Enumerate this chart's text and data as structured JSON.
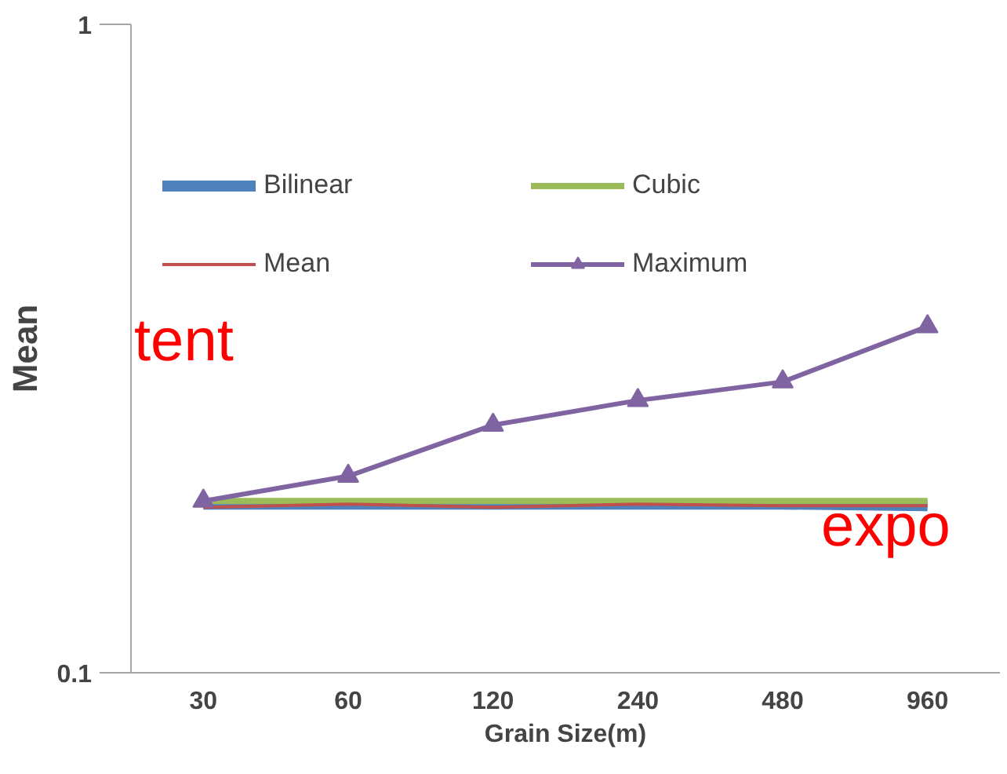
{
  "chart_data": {
    "type": "line",
    "xlabel": "Grain Size(m)",
    "ylabel": "Mean",
    "categories": [
      "30",
      "60",
      "120",
      "240",
      "480",
      "960"
    ],
    "series": [
      {
        "name": "Bilinear",
        "color": "#4f81bd",
        "values": [
          0.182,
          0.182,
          0.182,
          0.182,
          0.182,
          0.181
        ],
        "marker": "none"
      },
      {
        "name": "Cubic",
        "color": "#9bbb59",
        "values": [
          0.184,
          0.184,
          0.184,
          0.184,
          0.184,
          0.184
        ],
        "marker": "none"
      },
      {
        "name": "Mean",
        "color": "#c0504d",
        "values": [
          0.18,
          0.182,
          0.18,
          0.182,
          0.181,
          0.181
        ],
        "marker": "none"
      },
      {
        "name": "Maximum",
        "color": "#8064a2",
        "values": [
          0.184,
          0.201,
          0.241,
          0.263,
          0.281,
          0.342
        ],
        "marker": "triangle"
      }
    ],
    "ylim": [
      0.1,
      1
    ],
    "yticks": [
      0.1,
      1
    ],
    "log": "y",
    "grid": false,
    "legend": "top",
    "annotations": [
      "tent",
      "expo"
    ]
  }
}
